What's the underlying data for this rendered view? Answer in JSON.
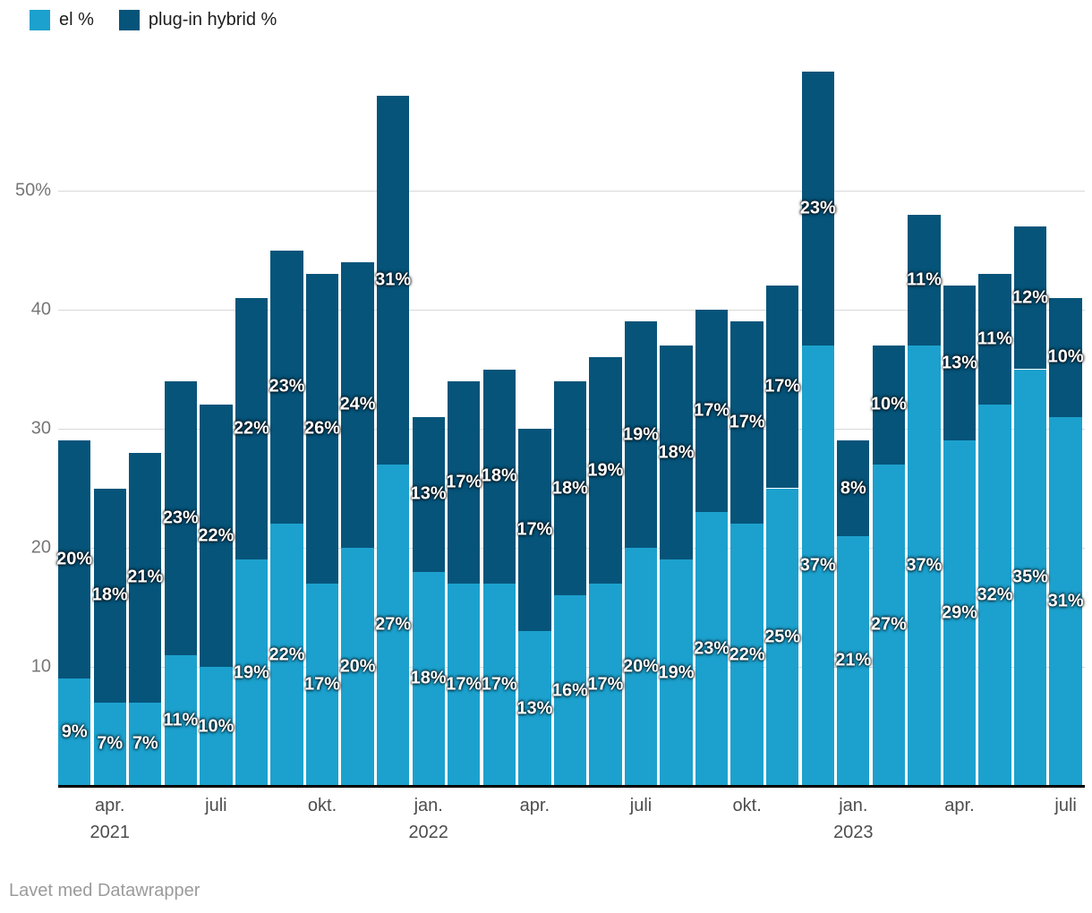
{
  "legend": {
    "items": [
      {
        "label": "el %",
        "color": "#1ca1ce"
      },
      {
        "label": "plug-in hybrid %",
        "color": "#06547a"
      }
    ]
  },
  "footer": {
    "credit": "Lavet med Datawrapper"
  },
  "colors": {
    "el": "#1ca1ce",
    "plugin_hybrid": "#06547a",
    "gridline": "#d8d8d8",
    "axis_line": "#000000",
    "y_label": "#767676",
    "x_label": "#4d4d4d",
    "bar_label": "#ffffff",
    "background": "#ffffff"
  },
  "chart_data": {
    "type": "bar",
    "stacked": true,
    "x": [
      "mar. 2021",
      "apr. 2021",
      "maj 2021",
      "jun. 2021",
      "jul. 2021",
      "aug. 2021",
      "sep. 2021",
      "okt. 2021",
      "nov. 2021",
      "dec. 2021",
      "jan. 2022",
      "feb. 2022",
      "mar. 2022",
      "apr. 2022",
      "maj 2022",
      "jun. 2022",
      "jul. 2022",
      "aug. 2022",
      "sep. 2022",
      "okt. 2022",
      "nov. 2022",
      "dec. 2022",
      "jan. 2023",
      "feb. 2023",
      "mar. 2023",
      "apr. 2023",
      "maj 2023",
      "jun. 2023",
      "jul. 2023"
    ],
    "series": [
      {
        "name": "el %",
        "values": [
          9,
          7,
          7,
          11,
          10,
          19,
          22,
          17,
          20,
          27,
          18,
          17,
          17,
          13,
          16,
          17,
          20,
          19,
          23,
          22,
          25,
          37,
          21,
          27,
          37,
          29,
          32,
          35,
          31
        ]
      },
      {
        "name": "plug-in hybrid %",
        "values": [
          20,
          18,
          21,
          23,
          22,
          22,
          23,
          26,
          24,
          31,
          13,
          17,
          18,
          17,
          18,
          19,
          19,
          18,
          17,
          17,
          17,
          23,
          8,
          10,
          11,
          13,
          11,
          12,
          10
        ]
      }
    ],
    "label_suffix": "%",
    "y_axis": {
      "ticks": [
        {
          "value": 10,
          "label": "10"
        },
        {
          "value": 20,
          "label": "20"
        },
        {
          "value": 30,
          "label": "30"
        },
        {
          "value": 40,
          "label": "40"
        },
        {
          "value": 50,
          "label": "50%"
        }
      ],
      "range": [
        0,
        62
      ],
      "grid": true
    },
    "x_axis": {
      "ticks": [
        {
          "bar": 1,
          "label": "apr.",
          "year": "2021"
        },
        {
          "bar": 4,
          "label": "juli"
        },
        {
          "bar": 7,
          "label": "okt."
        },
        {
          "bar": 10,
          "label": "jan.",
          "year": "2022"
        },
        {
          "bar": 13,
          "label": "apr."
        },
        {
          "bar": 16,
          "label": "juli"
        },
        {
          "bar": 19,
          "label": "okt."
        },
        {
          "bar": 22,
          "label": "jan.",
          "year": "2023"
        },
        {
          "bar": 25,
          "label": "apr."
        },
        {
          "bar": 28,
          "label": "juli"
        }
      ]
    },
    "legend_position": "top-left"
  }
}
